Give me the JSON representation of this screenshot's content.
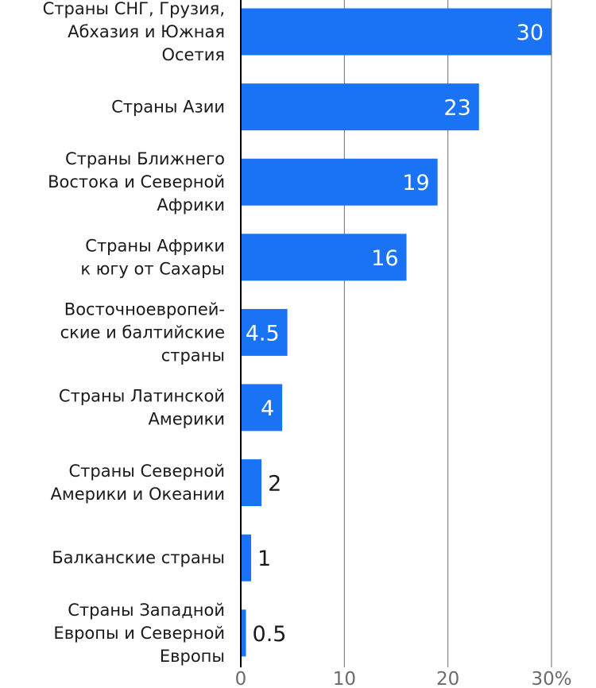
{
  "chart_data": {
    "type": "bar",
    "orientation": "horizontal",
    "title": "",
    "xlabel": "",
    "ylabel": "",
    "xlim": [
      0,
      30
    ],
    "ticks": [
      0,
      10,
      20,
      30
    ],
    "tick_labels": [
      "0",
      "10",
      "20",
      "30%"
    ],
    "grid": true,
    "categories": [
      [
        "Страны СНГ, Грузия,",
        "Абхазия и Южная",
        "Осетия"
      ],
      [
        "Страны Азии"
      ],
      [
        "Страны Ближнего",
        "Востока и Северной",
        "Африки"
      ],
      [
        "Страны Африки",
        "к югу от Сахары"
      ],
      [
        "Восточноевропей-",
        "ские и балтийские",
        "страны"
      ],
      [
        "Страны Латинской",
        "Америки"
      ],
      [
        "Страны Северной",
        "Америки и Океании"
      ],
      [
        "Балканские страны"
      ],
      [
        "Страны Западной",
        "Европы и Северной",
        "Европы"
      ]
    ],
    "values": [
      30,
      23,
      19,
      16,
      4.5,
      4,
      2,
      1,
      0.5
    ],
    "value_labels": [
      "30",
      "23",
      "19",
      "16",
      "4.5",
      "4",
      "2",
      "1",
      "0.5"
    ],
    "colors": {
      "bar": "#1a73f5",
      "grid": "#6b6b6b",
      "axis": "#000000"
    }
  }
}
